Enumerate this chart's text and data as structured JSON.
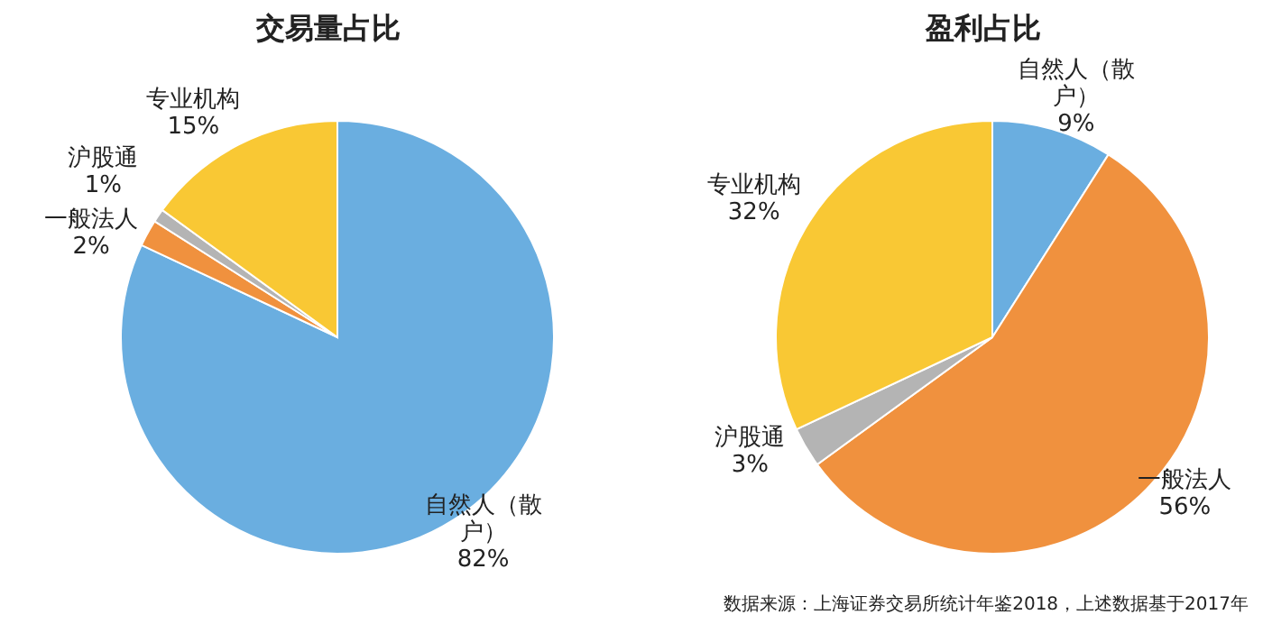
{
  "chart_data": [
    {
      "type": "pie",
      "title": "交易量占比",
      "categories": [
        "自然人（散户）",
        "一般法人",
        "沪股通",
        "专业机构"
      ],
      "values": [
        82,
        2,
        1,
        15
      ],
      "value_labels": [
        "82%",
        "2%",
        "1%",
        "15%"
      ],
      "colors": [
        "#6aaee0",
        "#f0913e",
        "#b4b4b4",
        "#f9c834"
      ]
    },
    {
      "type": "pie",
      "title": "盈利占比",
      "categories": [
        "自然人（散户）",
        "一般法人",
        "沪股通",
        "专业机构"
      ],
      "values": [
        9,
        56,
        3,
        32
      ],
      "value_labels": [
        "9%",
        "56%",
        "3%",
        "32%"
      ],
      "colors": [
        "#6aaee0",
        "#f0913e",
        "#b4b4b4",
        "#f9c834"
      ],
      "annotations": [
        "数据来源：上海证券交易所统计年鉴2018，上述数据基于2017年"
      ]
    }
  ]
}
